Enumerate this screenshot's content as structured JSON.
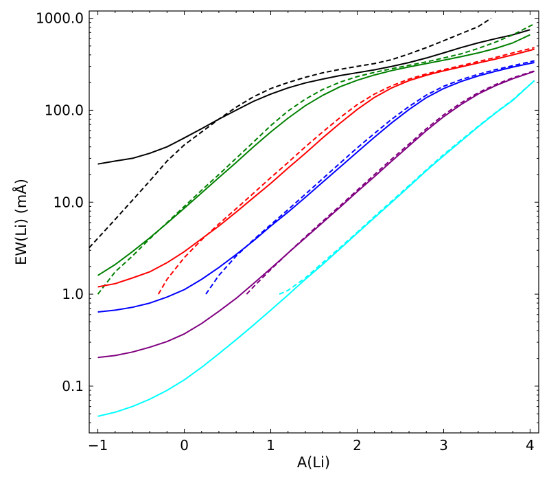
{
  "chart_data": {
    "type": "line",
    "xlabel": "A(Li)",
    "ylabel": "EW(Li) (mÅ)",
    "xlim": [
      -1.1,
      4.1
    ],
    "ylim": [
      0.031,
      1200
    ],
    "yscale": "log",
    "xticks": [
      -1,
      0,
      1,
      2,
      3,
      4
    ],
    "xtick_labels": [
      "−1",
      "0",
      "1",
      "2",
      "3",
      "4"
    ],
    "yticks": [
      0.1,
      1,
      10,
      100,
      1000
    ],
    "ytick_labels": [
      "0.1",
      "1.0",
      "10.0",
      "100.0",
      "1000.0"
    ],
    "grid": false,
    "legend": "none",
    "series": [
      {
        "color": "#000000",
        "style": "solid",
        "points": [
          [
            -1.0,
            26
          ],
          [
            -0.8,
            28
          ],
          [
            -0.6,
            30
          ],
          [
            -0.4,
            34
          ],
          [
            -0.2,
            40
          ],
          [
            0.0,
            50
          ],
          [
            0.2,
            63
          ],
          [
            0.4,
            80
          ],
          [
            0.6,
            100
          ],
          [
            0.8,
            125
          ],
          [
            1.0,
            150
          ],
          [
            1.2,
            175
          ],
          [
            1.4,
            198
          ],
          [
            1.6,
            218
          ],
          [
            1.8,
            238
          ],
          [
            2.0,
            256
          ],
          [
            2.2,
            275
          ],
          [
            2.4,
            300
          ],
          [
            2.6,
            330
          ],
          [
            2.8,
            370
          ],
          [
            3.0,
            420
          ],
          [
            3.2,
            480
          ],
          [
            3.4,
            540
          ],
          [
            3.6,
            600
          ],
          [
            3.8,
            660
          ],
          [
            4.0,
            750
          ]
        ]
      },
      {
        "color": "#000000",
        "style": "dashed",
        "points": [
          [
            -1.1,
            3.2
          ],
          [
            -0.8,
            6.5
          ],
          [
            -0.6,
            10.5
          ],
          [
            -0.4,
            17
          ],
          [
            -0.2,
            28
          ],
          [
            0.0,
            42
          ],
          [
            0.2,
            58
          ],
          [
            0.4,
            80
          ],
          [
            0.6,
            108
          ],
          [
            0.8,
            140
          ],
          [
            1.0,
            172
          ],
          [
            1.2,
            200
          ],
          [
            1.4,
            228
          ],
          [
            1.6,
            255
          ],
          [
            1.8,
            278
          ],
          [
            2.0,
            300
          ],
          [
            2.2,
            322
          ],
          [
            2.4,
            355
          ],
          [
            2.6,
            410
          ],
          [
            2.8,
            480
          ],
          [
            3.0,
            570
          ],
          [
            3.2,
            680
          ],
          [
            3.4,
            810
          ],
          [
            3.55,
            1000
          ]
        ]
      },
      {
        "color": "#008000",
        "style": "solid",
        "points": [
          [
            -1.0,
            1.6
          ],
          [
            -0.8,
            2.1
          ],
          [
            -0.6,
            2.9
          ],
          [
            -0.4,
            4.1
          ],
          [
            -0.2,
            5.9
          ],
          [
            0.0,
            8.6
          ],
          [
            0.2,
            12.6
          ],
          [
            0.4,
            18.5
          ],
          [
            0.6,
            27
          ],
          [
            0.8,
            40
          ],
          [
            1.0,
            58
          ],
          [
            1.2,
            82
          ],
          [
            1.4,
            112
          ],
          [
            1.6,
            145
          ],
          [
            1.8,
            180
          ],
          [
            2.0,
            212
          ],
          [
            2.2,
            242
          ],
          [
            2.4,
            270
          ],
          [
            2.6,
            296
          ],
          [
            2.8,
            322
          ],
          [
            3.0,
            350
          ],
          [
            3.2,
            382
          ],
          [
            3.4,
            420
          ],
          [
            3.6,
            470
          ],
          [
            3.8,
            540
          ],
          [
            4.0,
            660
          ]
        ]
      },
      {
        "color": "#008000",
        "style": "dashed",
        "points": [
          [
            -1.0,
            1.0
          ],
          [
            -0.8,
            1.75
          ],
          [
            -0.6,
            2.6
          ],
          [
            -0.4,
            4.0
          ],
          [
            -0.2,
            6.0
          ],
          [
            0.0,
            9.0
          ],
          [
            0.2,
            13.5
          ],
          [
            0.4,
            20
          ],
          [
            0.6,
            30
          ],
          [
            0.8,
            45
          ],
          [
            1.0,
            68
          ],
          [
            1.2,
            98
          ],
          [
            1.4,
            132
          ],
          [
            1.6,
            168
          ],
          [
            1.8,
            202
          ],
          [
            2.0,
            232
          ],
          [
            2.2,
            258
          ],
          [
            2.4,
            283
          ],
          [
            2.6,
            308
          ],
          [
            2.8,
            336
          ],
          [
            3.0,
            370
          ],
          [
            3.2,
            410
          ],
          [
            3.4,
            470
          ],
          [
            3.6,
            550
          ],
          [
            3.8,
            660
          ],
          [
            4.05,
            870
          ]
        ]
      },
      {
        "color": "#ff0000",
        "style": "solid",
        "points": [
          [
            -1.0,
            1.2
          ],
          [
            -0.8,
            1.3
          ],
          [
            -0.6,
            1.5
          ],
          [
            -0.4,
            1.75
          ],
          [
            -0.2,
            2.2
          ],
          [
            0.0,
            2.9
          ],
          [
            0.2,
            4.0
          ],
          [
            0.4,
            5.5
          ],
          [
            0.6,
            7.8
          ],
          [
            0.8,
            11.2
          ],
          [
            1.0,
            16
          ],
          [
            1.2,
            23.5
          ],
          [
            1.4,
            34
          ],
          [
            1.6,
            50
          ],
          [
            1.8,
            72
          ],
          [
            2.0,
            102
          ],
          [
            2.2,
            138
          ],
          [
            2.4,
            175
          ],
          [
            2.6,
            210
          ],
          [
            2.8,
            240
          ],
          [
            3.0,
            268
          ],
          [
            3.2,
            296
          ],
          [
            3.4,
            326
          ],
          [
            3.6,
            360
          ],
          [
            3.8,
            400
          ],
          [
            4.05,
            460
          ]
        ]
      },
      {
        "color": "#ff0000",
        "style": "dashed",
        "points": [
          [
            -0.3,
            1.0
          ],
          [
            -0.2,
            1.45
          ],
          [
            0.0,
            2.5
          ],
          [
            0.2,
            3.9
          ],
          [
            0.4,
            5.8
          ],
          [
            0.6,
            8.5
          ],
          [
            0.8,
            12.5
          ],
          [
            1.0,
            18.5
          ],
          [
            1.2,
            27
          ],
          [
            1.4,
            40
          ],
          [
            1.6,
            58
          ],
          [
            1.8,
            83
          ],
          [
            2.0,
            115
          ],
          [
            2.2,
            150
          ],
          [
            2.4,
            185
          ],
          [
            2.6,
            218
          ],
          [
            2.8,
            248
          ],
          [
            3.0,
            276
          ],
          [
            3.2,
            305
          ],
          [
            3.4,
            338
          ],
          [
            3.6,
            375
          ],
          [
            3.8,
            420
          ],
          [
            4.05,
            480
          ]
        ]
      },
      {
        "color": "#0000ff",
        "style": "solid",
        "points": [
          [
            -1.0,
            0.64
          ],
          [
            -0.8,
            0.67
          ],
          [
            -0.6,
            0.72
          ],
          [
            -0.4,
            0.8
          ],
          [
            -0.2,
            0.93
          ],
          [
            0.0,
            1.12
          ],
          [
            0.2,
            1.45
          ],
          [
            0.4,
            1.95
          ],
          [
            0.6,
            2.7
          ],
          [
            0.8,
            3.8
          ],
          [
            1.0,
            5.5
          ],
          [
            1.2,
            7.8
          ],
          [
            1.4,
            11.3
          ],
          [
            1.6,
            16.5
          ],
          [
            1.8,
            24
          ],
          [
            2.0,
            35
          ],
          [
            2.2,
            51
          ],
          [
            2.4,
            73
          ],
          [
            2.6,
            102
          ],
          [
            2.8,
            137
          ],
          [
            3.0,
            172
          ],
          [
            3.2,
            205
          ],
          [
            3.4,
            236
          ],
          [
            3.6,
            265
          ],
          [
            3.8,
            295
          ],
          [
            4.05,
            330
          ]
        ]
      },
      {
        "color": "#0000ff",
        "style": "dashed",
        "points": [
          [
            0.25,
            1.0
          ],
          [
            0.4,
            1.6
          ],
          [
            0.6,
            2.6
          ],
          [
            0.8,
            3.9
          ],
          [
            1.0,
            5.7
          ],
          [
            1.2,
            8.3
          ],
          [
            1.4,
            12.2
          ],
          [
            1.6,
            18
          ],
          [
            1.8,
            26.5
          ],
          [
            2.0,
            39
          ],
          [
            2.2,
            56
          ],
          [
            2.4,
            80
          ],
          [
            2.6,
            110
          ],
          [
            2.8,
            146
          ],
          [
            3.0,
            182
          ],
          [
            3.2,
            215
          ],
          [
            3.4,
            246
          ],
          [
            3.6,
            276
          ],
          [
            3.8,
            305
          ],
          [
            4.05,
            345
          ]
        ]
      },
      {
        "color": "#800080",
        "style": "solid",
        "points": [
          [
            -1.0,
            0.205
          ],
          [
            -0.8,
            0.215
          ],
          [
            -0.6,
            0.235
          ],
          [
            -0.4,
            0.265
          ],
          [
            -0.2,
            0.305
          ],
          [
            0.0,
            0.37
          ],
          [
            0.2,
            0.48
          ],
          [
            0.4,
            0.65
          ],
          [
            0.6,
            0.9
          ],
          [
            0.8,
            1.3
          ],
          [
            1.0,
            1.9
          ],
          [
            1.2,
            2.8
          ],
          [
            1.4,
            4.1
          ],
          [
            1.6,
            6.0
          ],
          [
            1.8,
            8.8
          ],
          [
            2.0,
            13
          ],
          [
            2.2,
            19
          ],
          [
            2.4,
            28
          ],
          [
            2.6,
            41
          ],
          [
            2.8,
            60
          ],
          [
            3.0,
            85
          ],
          [
            3.2,
            115
          ],
          [
            3.4,
            150
          ],
          [
            3.6,
            185
          ],
          [
            3.8,
            220
          ],
          [
            4.05,
            265
          ]
        ]
      },
      {
        "color": "#800080",
        "style": "dashed",
        "points": [
          [
            0.72,
            1.0
          ],
          [
            0.8,
            1.2
          ],
          [
            1.0,
            1.85
          ],
          [
            1.2,
            2.8
          ],
          [
            1.4,
            4.2
          ],
          [
            1.6,
            6.2
          ],
          [
            1.8,
            9.1
          ],
          [
            2.0,
            13.5
          ],
          [
            2.2,
            20
          ],
          [
            2.4,
            29.5
          ],
          [
            2.6,
            43
          ],
          [
            2.8,
            63
          ],
          [
            3.0,
            89
          ],
          [
            3.2,
            120
          ],
          [
            3.4,
            155
          ],
          [
            3.6,
            190
          ],
          [
            3.8,
            225
          ],
          [
            4.05,
            268
          ]
        ]
      },
      {
        "color": "#00ffff",
        "style": "solid",
        "points": [
          [
            -1.0,
            0.047
          ],
          [
            -0.8,
            0.052
          ],
          [
            -0.6,
            0.06
          ],
          [
            -0.4,
            0.072
          ],
          [
            -0.2,
            0.09
          ],
          [
            0.0,
            0.117
          ],
          [
            0.2,
            0.16
          ],
          [
            0.4,
            0.225
          ],
          [
            0.6,
            0.32
          ],
          [
            0.8,
            0.46
          ],
          [
            1.0,
            0.67
          ],
          [
            1.2,
            0.98
          ],
          [
            1.4,
            1.45
          ],
          [
            1.6,
            2.1
          ],
          [
            1.8,
            3.1
          ],
          [
            2.0,
            4.6
          ],
          [
            2.2,
            6.8
          ],
          [
            2.4,
            10
          ],
          [
            2.6,
            14.8
          ],
          [
            2.8,
            22
          ],
          [
            3.0,
            32
          ],
          [
            3.2,
            46
          ],
          [
            3.4,
            66
          ],
          [
            3.6,
            93
          ],
          [
            3.8,
            128
          ],
          [
            4.05,
            210
          ]
        ]
      },
      {
        "color": "#00ffff",
        "style": "dashed",
        "points": [
          [
            1.1,
            1.0
          ],
          [
            1.2,
            1.1
          ],
          [
            1.4,
            1.5
          ],
          [
            1.6,
            2.2
          ],
          [
            1.8,
            3.2
          ],
          [
            2.0,
            4.7
          ],
          [
            2.2,
            7.0
          ],
          [
            2.4,
            10.3
          ],
          [
            2.6,
            15.2
          ],
          [
            2.8,
            22.5
          ],
          [
            3.0,
            33
          ],
          [
            3.2,
            47
          ],
          [
            3.4,
            67
          ],
          [
            3.6,
            94
          ],
          [
            3.8,
            130
          ],
          [
            4.05,
            210
          ]
        ]
      }
    ]
  }
}
